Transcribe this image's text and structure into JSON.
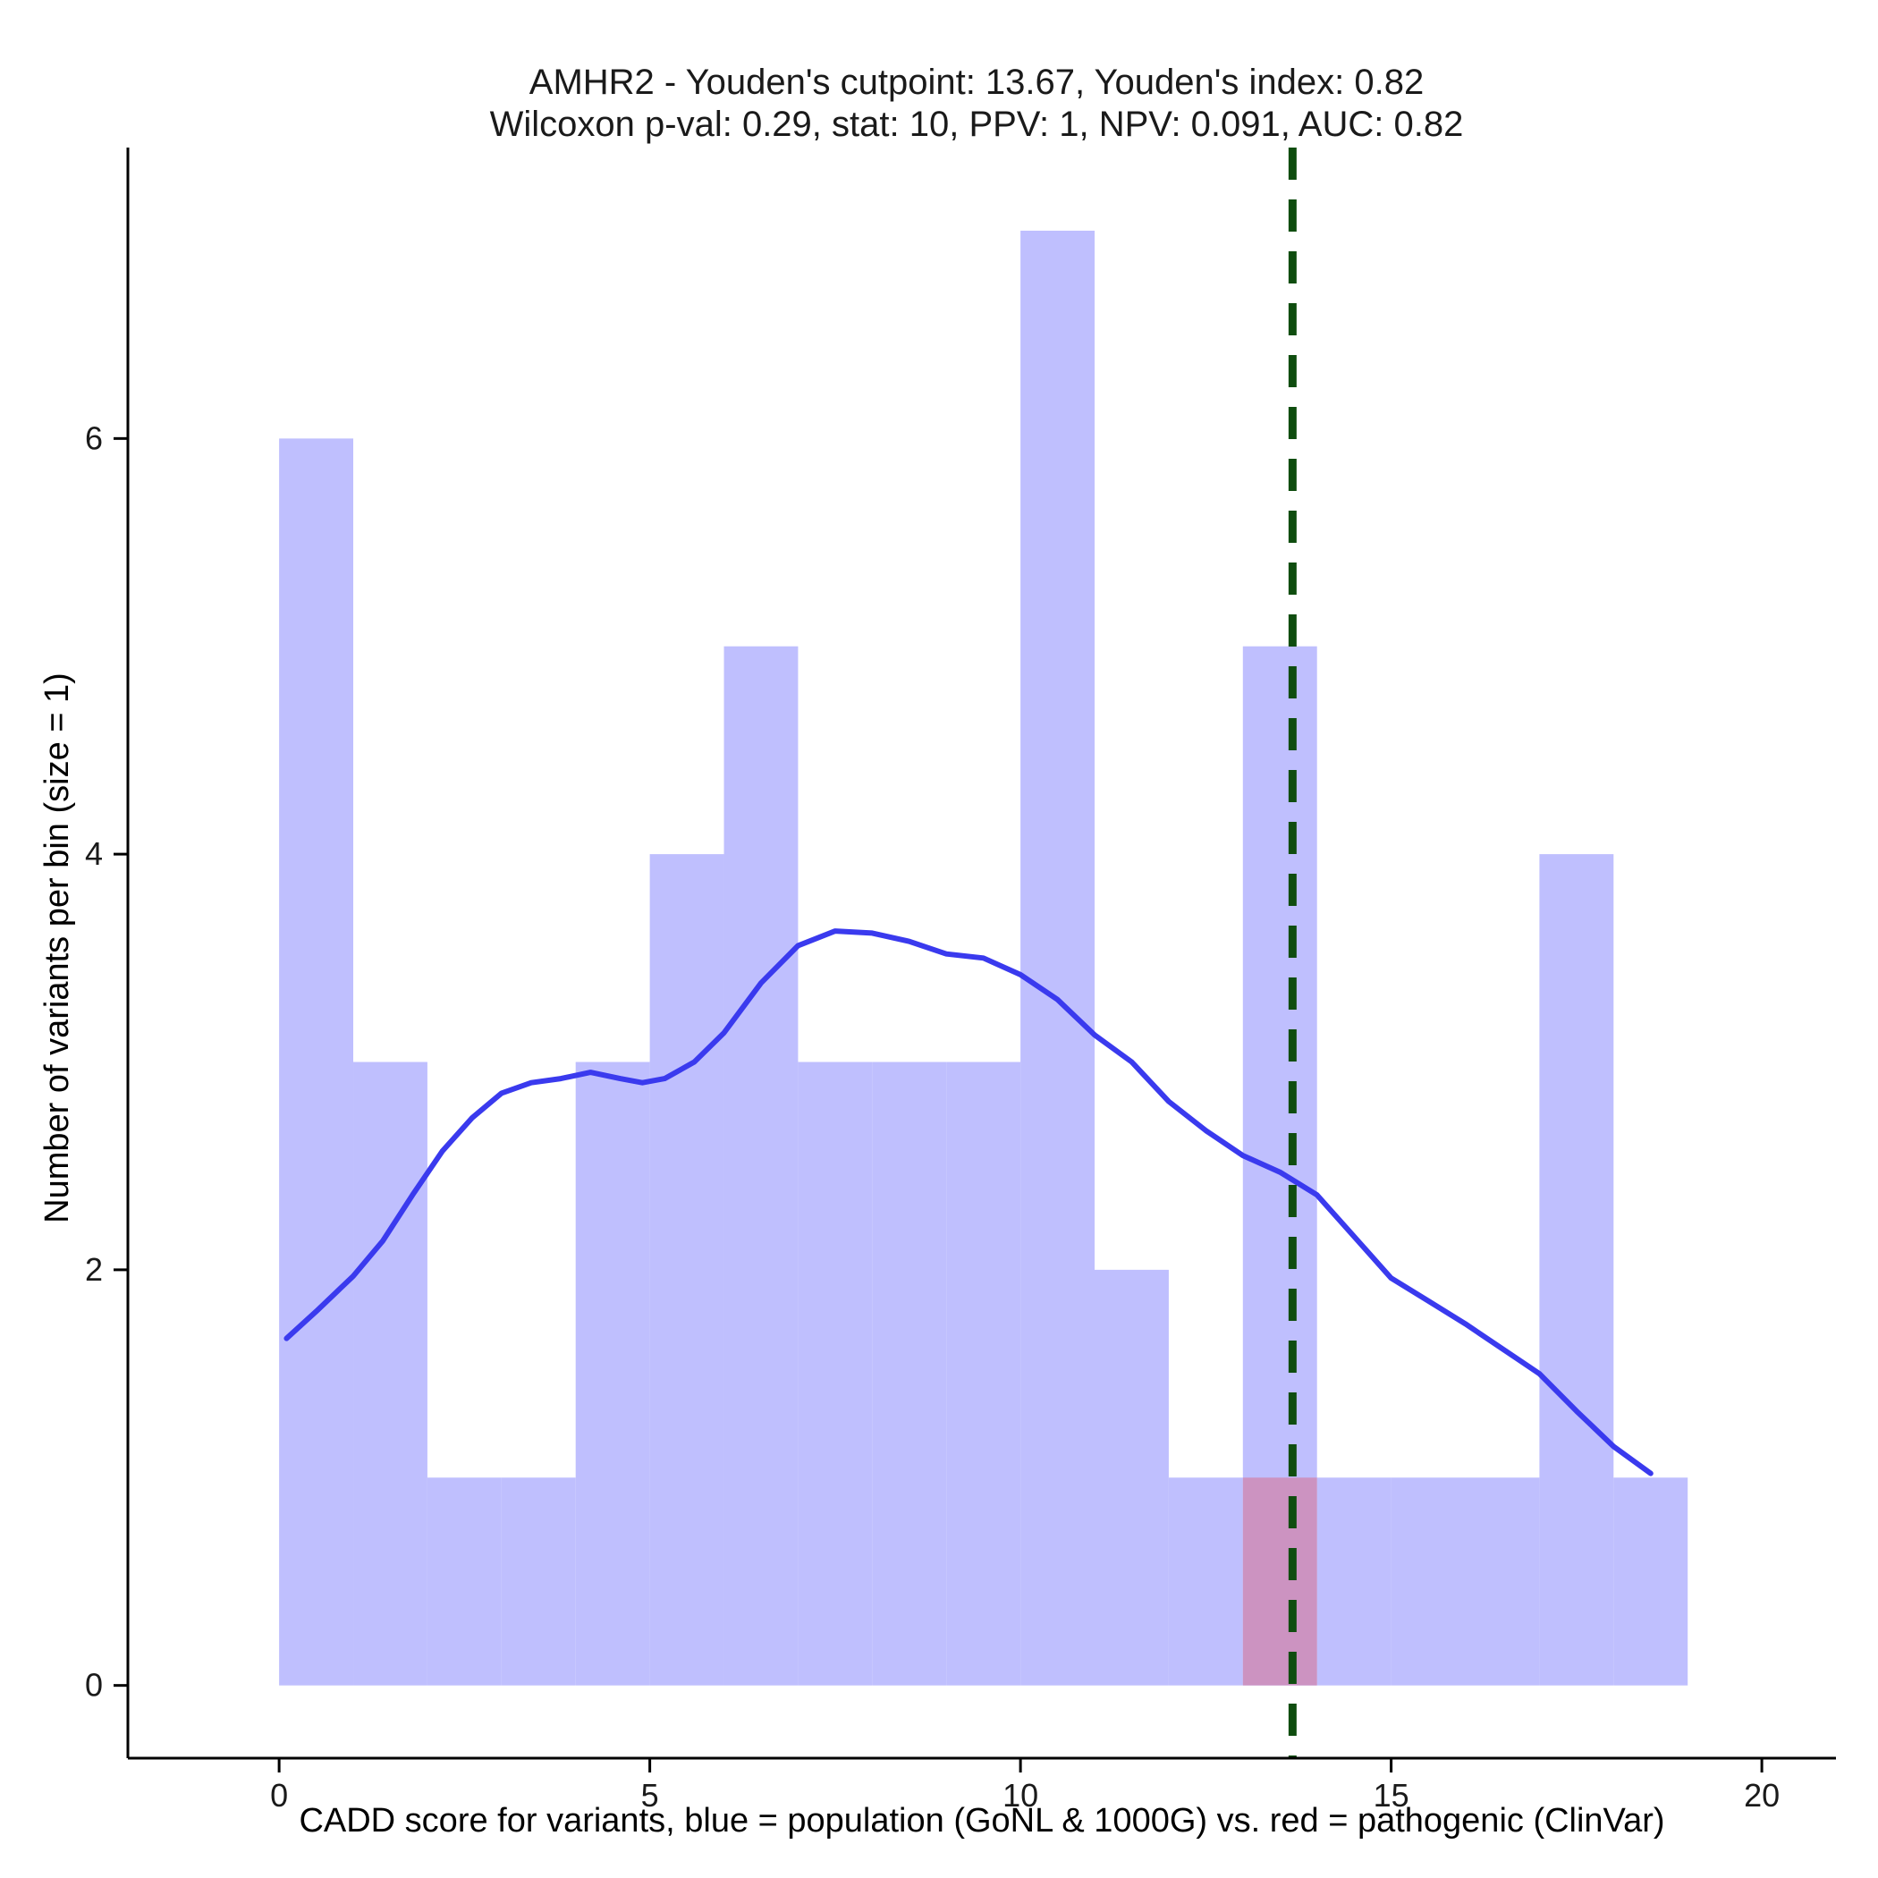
{
  "colors": {
    "background": "#ffffff",
    "population_fill": "#bfbffe",
    "pathogenic_fill": "#cc93c1",
    "density_line": "#3a3aee",
    "cutpoint_line": "#0f4d0f",
    "axis": "#000000"
  },
  "chart_data": {
    "type": "histogram",
    "title_line1": "AMHR2 - Youden's cutpoint: 13.67, Youden's index: 0.82",
    "title_line2": "Wilcoxon p-val: 0.29, stat: 10, PPV: 1, NPV: 0.091, AUC: 0.82",
    "xlabel": "CADD score for variants, blue = population (GoNL & 1000G) vs. red = pathogenic (ClinVar)",
    "ylabel": "Number of variants per bin (size = 1)",
    "xlim": [
      -2.04,
      21.0
    ],
    "ylim": [
      -0.35,
      7.4
    ],
    "xticks": [
      0,
      5,
      10,
      15,
      20
    ],
    "xtick_labels": [
      "0",
      "5",
      "10",
      "15",
      "20"
    ],
    "yticks": [
      0,
      2,
      4,
      6
    ],
    "ytick_labels": [
      "0",
      "2",
      "4",
      "6"
    ],
    "bin_width": 1,
    "series": [
      {
        "name": "population (GoNL & 1000G)",
        "bins": [
          {
            "x0": 0,
            "count": 6
          },
          {
            "x0": 1,
            "count": 3
          },
          {
            "x0": 2,
            "count": 1
          },
          {
            "x0": 3,
            "count": 1
          },
          {
            "x0": 4,
            "count": 3
          },
          {
            "x0": 5,
            "count": 4
          },
          {
            "x0": 6,
            "count": 5
          },
          {
            "x0": 7,
            "count": 3
          },
          {
            "x0": 8,
            "count": 3
          },
          {
            "x0": 9,
            "count": 3
          },
          {
            "x0": 10,
            "count": 7
          },
          {
            "x0": 11,
            "count": 2
          },
          {
            "x0": 12,
            "count": 1
          },
          {
            "x0": 13,
            "count": 5
          },
          {
            "x0": 14,
            "count": 1
          },
          {
            "x0": 15,
            "count": 1
          },
          {
            "x0": 16,
            "count": 1
          },
          {
            "x0": 17,
            "count": 4
          },
          {
            "x0": 18,
            "count": 1
          }
        ]
      },
      {
        "name": "pathogenic (ClinVar)",
        "bins": [
          {
            "x0": 13,
            "count": 1
          }
        ]
      }
    ],
    "density_curve": {
      "name": "population density (scaled)",
      "x": [
        0.1,
        0.5,
        1.0,
        1.4,
        1.8,
        2.2,
        2.6,
        3.0,
        3.4,
        3.8,
        4.2,
        4.6,
        4.9,
        5.2,
        5.6,
        6.0,
        6.5,
        7.0,
        7.5,
        8.0,
        8.5,
        9.0,
        9.5,
        10.0,
        10.5,
        11.0,
        11.5,
        12.0,
        12.5,
        13.0,
        13.5,
        14.0,
        14.5,
        15.0,
        15.5,
        16.0,
        16.5,
        17.0,
        17.5,
        18.0,
        18.5
      ],
      "y": [
        1.67,
        1.8,
        1.97,
        2.14,
        2.36,
        2.57,
        2.73,
        2.85,
        2.9,
        2.92,
        2.95,
        2.92,
        2.9,
        2.92,
        3.0,
        3.14,
        3.38,
        3.56,
        3.63,
        3.62,
        3.58,
        3.52,
        3.5,
        3.42,
        3.3,
        3.13,
        3.0,
        2.81,
        2.67,
        2.55,
        2.47,
        2.36,
        2.16,
        1.96,
        1.85,
        1.74,
        1.62,
        1.5,
        1.32,
        1.15,
        1.02
      ]
    },
    "cutpoint": {
      "x": 13.67,
      "label": "Youden's cutpoint"
    },
    "grid": false,
    "legend": "none"
  }
}
